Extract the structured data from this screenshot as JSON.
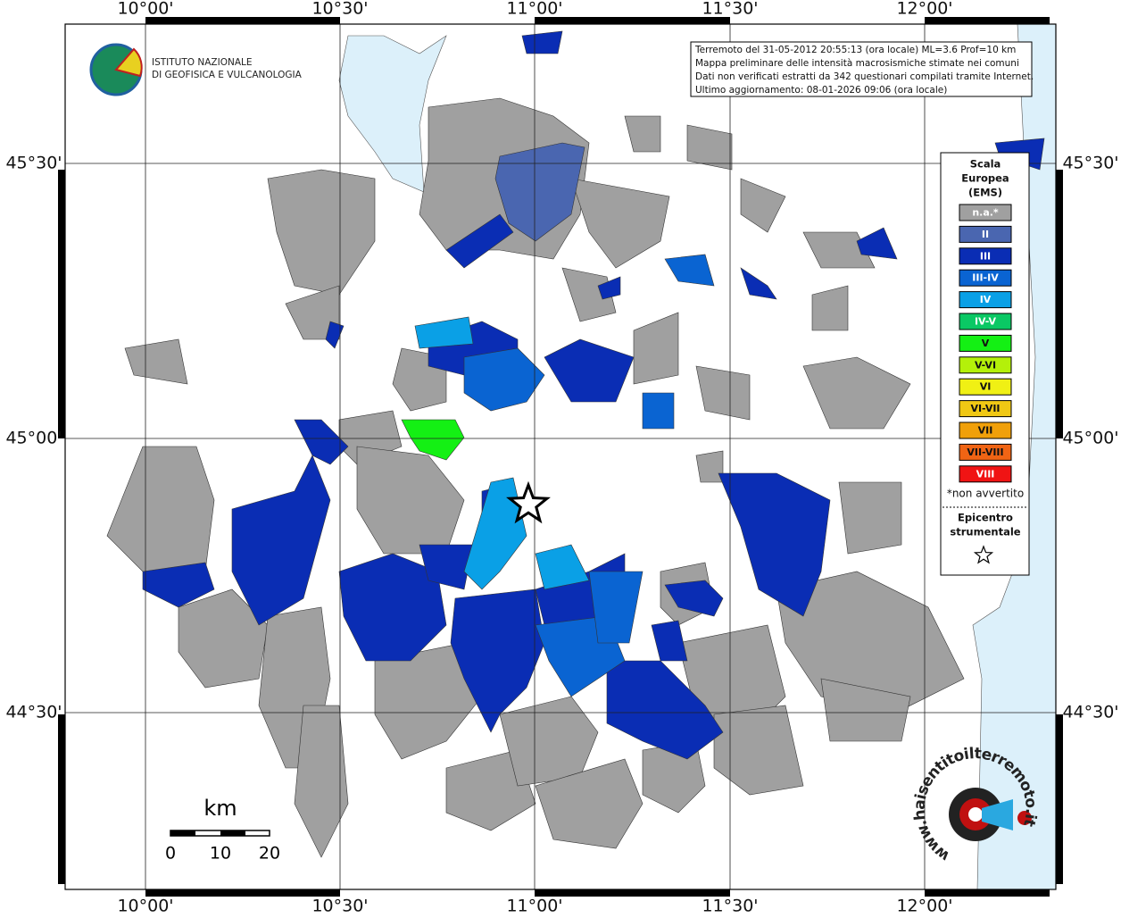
{
  "map": {
    "lon_labels": [
      "10°00'",
      "10°30'",
      "11°00'",
      "11°30'",
      "12°00'"
    ],
    "lat_labels": [
      "45°30'",
      "45°00'",
      "44°30'"
    ],
    "info": [
      "Terremoto del 31-05-2012 20:55:13 (ora locale) ML=3.6 Prof=10 km",
      "Mappa preliminare delle intensità macrosismiche stimate nei comuni",
      "Dati non verificati estratti da 342 questionari compilati tramite Internet.",
      "Ultimo aggiornamento: 08-01-2026 09:06 (ora locale)"
    ],
    "logo": [
      "ISTITUTO NAZIONALE",
      "DI GEOFISICA E VULCANOLOGIA"
    ],
    "legend": {
      "title": [
        "Scala",
        "Europea",
        "(EMS)"
      ],
      "classes": [
        {
          "label": "n.a.*",
          "color": "#a0a0a0"
        },
        {
          "label": "II",
          "color": "#4a66b0"
        },
        {
          "label": "III",
          "color": "#0a2db4"
        },
        {
          "label": "III-IV",
          "color": "#0a64d2"
        },
        {
          "label": "IV",
          "color": "#0aa0e6"
        },
        {
          "label": "IV-V",
          "color": "#0ac864"
        },
        {
          "label": "V",
          "color": "#14f014"
        },
        {
          "label": "V-VI",
          "color": "#b4f00a"
        },
        {
          "label": "VI",
          "color": "#f0f014"
        },
        {
          "label": "VI-VII",
          "color": "#f0c814"
        },
        {
          "label": "VII",
          "color": "#f0a00a"
        },
        {
          "label": "VII-VIII",
          "color": "#f06414"
        },
        {
          "label": "VIII",
          "color": "#f01414"
        }
      ],
      "note": "*non avvertito",
      "epicenter": [
        "Epicentro",
        "strumentale"
      ]
    },
    "scale": {
      "title": "km",
      "ticks": [
        0,
        10,
        20
      ]
    },
    "badge": "www.haisentitoilterremoto.it"
  }
}
